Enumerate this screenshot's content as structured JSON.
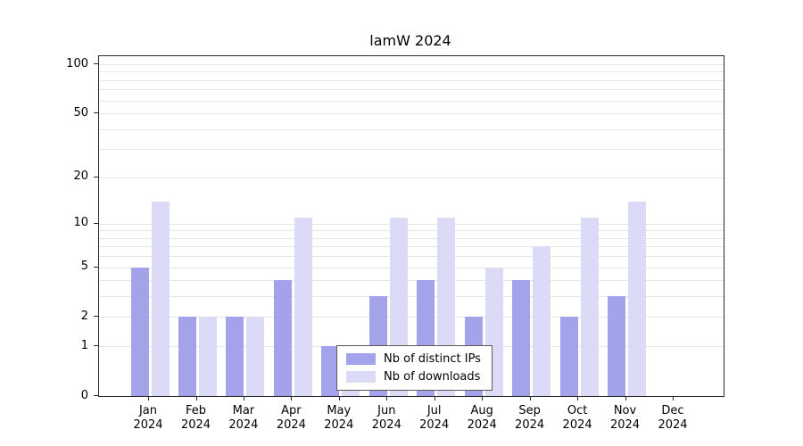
{
  "chart_data": {
    "type": "bar",
    "title": "lamW 2024",
    "categories": [
      "Jan 2024",
      "Feb 2024",
      "Mar 2024",
      "Apr 2024",
      "May 2024",
      "Jun 2024",
      "Jul 2024",
      "Aug 2024",
      "Sep 2024",
      "Oct 2024",
      "Nov 2024",
      "Dec 2024"
    ],
    "series": [
      {
        "name": "Nb of distinct IPs",
        "color": "#a3a3ec",
        "values": [
          5,
          2,
          2,
          4,
          1,
          3,
          4,
          2,
          4,
          2,
          3,
          0
        ]
      },
      {
        "name": "Nb of downloads",
        "color": "#dbdbf8",
        "values": [
          14,
          2,
          2,
          11,
          1,
          11,
          11,
          5,
          7,
          11,
          14,
          0
        ]
      }
    ],
    "scale": "log1p",
    "ylim": [
      0,
      100
    ],
    "y_ticks": [
      0,
      1,
      2,
      5,
      10,
      20,
      50,
      100
    ],
    "grid_values": [
      1,
      2,
      3,
      4,
      5,
      6,
      7,
      8,
      9,
      10,
      20,
      30,
      40,
      50,
      60,
      70,
      80,
      90,
      100
    ],
    "xlabel": "",
    "ylabel": "",
    "grid": "horizontal",
    "legend_position": "bottom-center-inside"
  }
}
